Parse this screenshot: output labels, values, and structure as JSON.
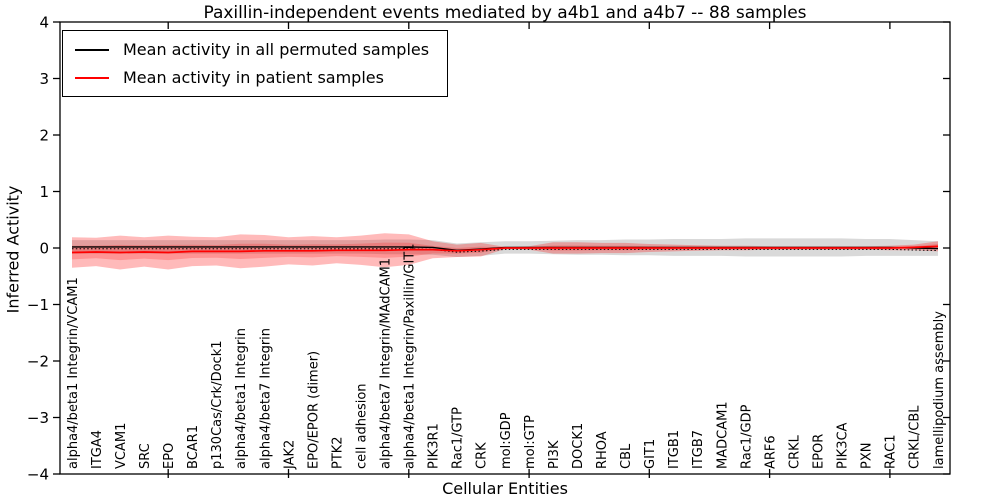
{
  "figure": {
    "title": "Paxillin-independent events mediated by a4b1 and a4b7 -- 88 samples",
    "xlabel": "Cellular Entities",
    "ylabel": "Inferred Activity"
  },
  "legend": {
    "items": [
      {
        "label": "Mean activity in all permuted samples",
        "color": "#000000"
      },
      {
        "label": "Mean activity in patient samples",
        "color": "#ff0000"
      }
    ]
  },
  "chart_data": {
    "type": "line",
    "title": "Paxillin-independent events mediated by a4b1 and a4b7 -- 88 samples",
    "xlabel": "Cellular Entities",
    "ylabel": "Inferred Activity",
    "ylim": [
      -4,
      4
    ],
    "yticks": [
      -4,
      -3,
      -2,
      -1,
      0,
      1,
      2,
      3,
      4
    ],
    "xtick_major_indices": [
      4,
      9,
      14,
      19,
      24,
      29,
      34
    ],
    "grid": false,
    "legend_position": "upper left",
    "band_style": {
      "permuted_fill": "#808080",
      "permuted_opacity": 0.3,
      "patient_fill": "#ff0000",
      "patient_opacity": 0.27
    },
    "categories": [
      "alpha4/beta1 Integrin/VCAM1",
      "ITGA4",
      "VCAM1",
      "SRC",
      "EPO",
      "BCAR1",
      "p130Cas/Crk/Dock1",
      "alpha4/beta1 Integrin",
      "alpha4/beta7 Integrin",
      "JAK2",
      "EPO/EPOR (dimer)",
      "PTK2",
      "cell adhesion",
      "alpha4/beta7 Integrin/MAdCAM1",
      "alpha4/beta1 Integrin/Paxillin/GIT1",
      "PIK3R1",
      "Rac1/GTP",
      "CRK",
      "mol:GDP",
      "mol:GTP",
      "PI3K",
      "DOCK1",
      "RHOA",
      "CBL",
      "GIT1",
      "ITGB1",
      "ITGB7",
      "MADCAM1",
      "Rac1/GDP",
      "ARF6",
      "CRKL",
      "EPOR",
      "PIK3CA",
      "PXN",
      "RAC1",
      "CRKL/CBL",
      "lamellipodium assembly"
    ],
    "series": [
      {
        "name": "Mean activity in all permuted samples",
        "color": "#000000",
        "mean": [
          0.02,
          0.02,
          0.02,
          0.02,
          0.02,
          0.02,
          0.02,
          0.02,
          0.02,
          0.02,
          0.02,
          0.02,
          0.02,
          0.02,
          0.02,
          0.01,
          -0.04,
          -0.02,
          0.01,
          0.01,
          0.01,
          0.01,
          0.01,
          0.01,
          0.01,
          0.01,
          0.01,
          0.01,
          0.01,
          0.01,
          0.01,
          0.01,
          0.01,
          0.01,
          0.01,
          0.0,
          -0.01
        ],
        "std": [
          0.12,
          0.12,
          0.12,
          0.12,
          0.12,
          0.12,
          0.12,
          0.12,
          0.12,
          0.12,
          0.12,
          0.12,
          0.12,
          0.13,
          0.13,
          0.13,
          0.12,
          0.12,
          0.11,
          0.11,
          0.12,
          0.13,
          0.13,
          0.14,
          0.14,
          0.15,
          0.15,
          0.15,
          0.16,
          0.16,
          0.16,
          0.16,
          0.16,
          0.15,
          0.15,
          0.14,
          0.13
        ]
      },
      {
        "name": "Mean activity in patient samples",
        "color": "#ff0000",
        "mean": [
          -0.08,
          -0.07,
          -0.08,
          -0.07,
          -0.08,
          -0.06,
          -0.06,
          -0.06,
          -0.05,
          -0.05,
          -0.05,
          -0.04,
          -0.04,
          -0.04,
          -0.03,
          -0.03,
          -0.05,
          -0.03,
          0.0,
          0.0,
          0.0,
          0.0,
          0.0,
          0.0,
          0.0,
          0.0,
          0.0,
          0.0,
          0.0,
          0.0,
          0.0,
          0.0,
          0.0,
          0.0,
          0.0,
          0.01,
          0.03
        ],
        "std": [
          0.27,
          0.25,
          0.3,
          0.26,
          0.3,
          0.26,
          0.25,
          0.3,
          0.28,
          0.24,
          0.26,
          0.23,
          0.26,
          0.3,
          0.27,
          0.15,
          0.11,
          0.12,
          0.02,
          0.03,
          0.1,
          0.1,
          0.09,
          0.09,
          0.07,
          0.06,
          0.05,
          0.04,
          0.04,
          0.03,
          0.03,
          0.03,
          0.03,
          0.03,
          0.04,
          0.05,
          0.09
        ]
      }
    ]
  }
}
